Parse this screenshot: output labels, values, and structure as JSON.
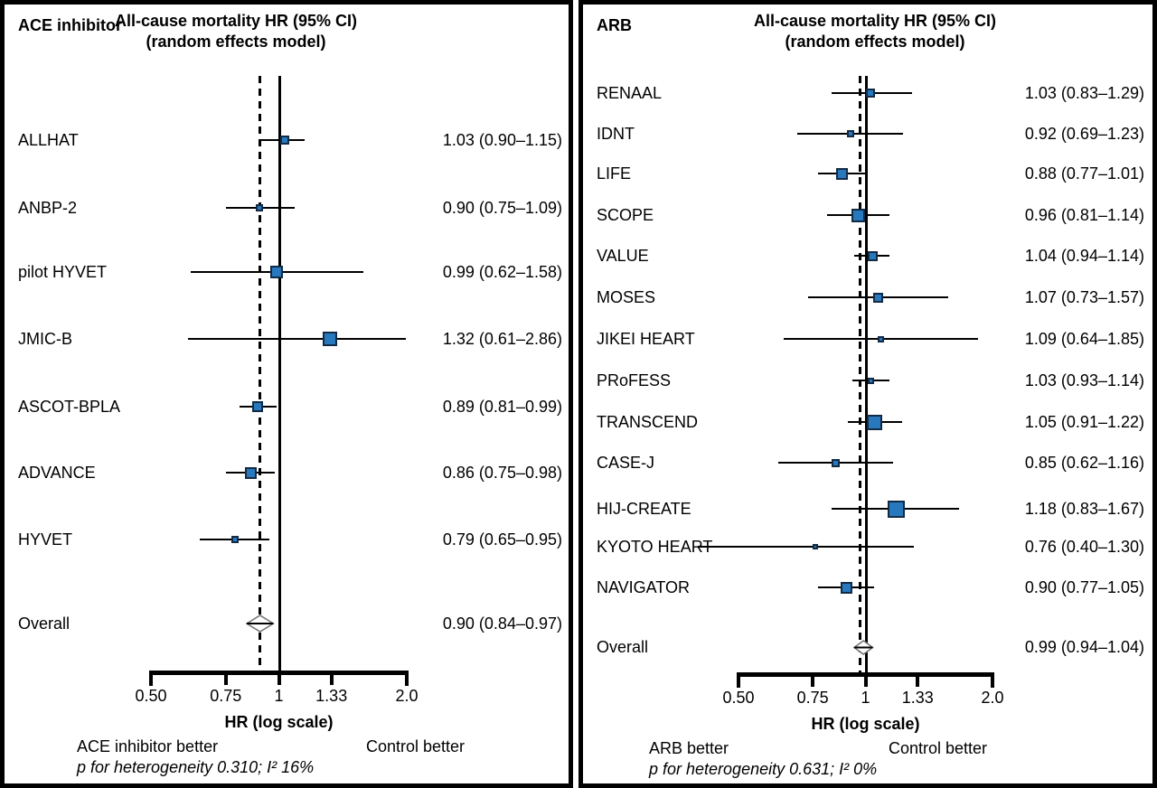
{
  "colors": {
    "marker_fill": "#2878BE",
    "marker_stroke": "#122B45",
    "diamond_stroke": "#777777",
    "line_color": "#000000"
  },
  "chart_data": [
    {
      "type": "forest",
      "group_label": "ACE inhibitor",
      "title": [
        "All-cause mortality HR (95% CI)",
        "(random effects model)"
      ],
      "axis": {
        "label": "HR (log scale)",
        "scale": "log",
        "range": [
          0.5,
          2.0
        ],
        "ticks": [
          0.5,
          0.75,
          1,
          1.33,
          2.0
        ],
        "tick_labels": [
          "0.50",
          "0.75",
          "1",
          "1.33",
          "2.0"
        ],
        "reference_line": 1.0
      },
      "studies": [
        {
          "name": "ALLHAT",
          "hr": 1.03,
          "lo": 0.9,
          "hi": 1.15,
          "marker_size": 10
        },
        {
          "name": "ANBP-2",
          "hr": 0.9,
          "lo": 0.75,
          "hi": 1.09,
          "marker_size": 8
        },
        {
          "name": "pilot HYVET",
          "hr": 0.99,
          "lo": 0.62,
          "hi": 1.58,
          "marker_size": 14
        },
        {
          "name": "JMIC-B",
          "hr": 1.32,
          "lo": 0.61,
          "hi": 2.86,
          "marker_size": 16
        },
        {
          "name": "ASCOT-BPLA",
          "hr": 0.89,
          "lo": 0.81,
          "hi": 0.99,
          "marker_size": 12
        },
        {
          "name": "ADVANCE",
          "hr": 0.86,
          "lo": 0.75,
          "hi": 0.98,
          "marker_size": 13
        },
        {
          "name": "HYVET",
          "hr": 0.79,
          "lo": 0.65,
          "hi": 0.95,
          "marker_size": 8
        }
      ],
      "overall": {
        "name": "Overall",
        "hr": 0.9,
        "lo": 0.84,
        "hi": 0.97
      },
      "footer": {
        "left_label": "ACE inhibitor better",
        "right_label": "Control better",
        "heterogeneity": "p for heterogeneity 0.310; I² 16%"
      }
    },
    {
      "type": "forest",
      "group_label": "ARB",
      "title": [
        "All-cause mortality HR (95% CI)",
        "(random effects model)"
      ],
      "axis": {
        "label": "HR (log scale)",
        "scale": "log",
        "range": [
          0.5,
          2.0
        ],
        "ticks": [
          0.5,
          0.75,
          1,
          1.33,
          2.0
        ],
        "tick_labels": [
          "0.50",
          "0.75",
          "1",
          "1.33",
          "2.0"
        ],
        "reference_line": 1.0
      },
      "studies": [
        {
          "name": "RENAAL",
          "hr": 1.03,
          "lo": 0.83,
          "hi": 1.29,
          "marker_size": 10
        },
        {
          "name": "IDNT",
          "hr": 0.92,
          "lo": 0.69,
          "hi": 1.23,
          "marker_size": 8
        },
        {
          "name": "LIFE",
          "hr": 0.88,
          "lo": 0.77,
          "hi": 1.01,
          "marker_size": 13
        },
        {
          "name": "SCOPE",
          "hr": 0.96,
          "lo": 0.81,
          "hi": 1.14,
          "marker_size": 15
        },
        {
          "name": "VALUE",
          "hr": 1.04,
          "lo": 0.94,
          "hi": 1.14,
          "marker_size": 11
        },
        {
          "name": "MOSES",
          "hr": 1.07,
          "lo": 0.73,
          "hi": 1.57,
          "marker_size": 11
        },
        {
          "name": "JIKEI HEART",
          "hr": 1.09,
          "lo": 0.64,
          "hi": 1.85,
          "marker_size": 7
        },
        {
          "name": "PRoFESS",
          "hr": 1.03,
          "lo": 0.93,
          "hi": 1.14,
          "marker_size": 7
        },
        {
          "name": "TRANSCEND",
          "hr": 1.05,
          "lo": 0.91,
          "hi": 1.22,
          "marker_size": 17
        },
        {
          "name": "CASE-J",
          "hr": 0.85,
          "lo": 0.62,
          "hi": 1.16,
          "marker_size": 9
        },
        {
          "name": "HIJ-CREATE",
          "hr": 1.18,
          "lo": 0.83,
          "hi": 1.67,
          "marker_size": 19
        },
        {
          "name": "KYOTO HEART",
          "hr": 0.76,
          "lo": 0.4,
          "hi": 1.3,
          "marker_size": 6
        },
        {
          "name": "NAVIGATOR",
          "hr": 0.9,
          "lo": 0.77,
          "hi": 1.05,
          "marker_size": 13
        }
      ],
      "overall": {
        "name": "Overall",
        "hr": 0.99,
        "lo": 0.94,
        "hi": 1.04
      },
      "footer": {
        "left_label": "ARB better",
        "right_label": "Control better",
        "heterogeneity": "p for heterogeneity 0.631; I² 0%"
      }
    }
  ]
}
